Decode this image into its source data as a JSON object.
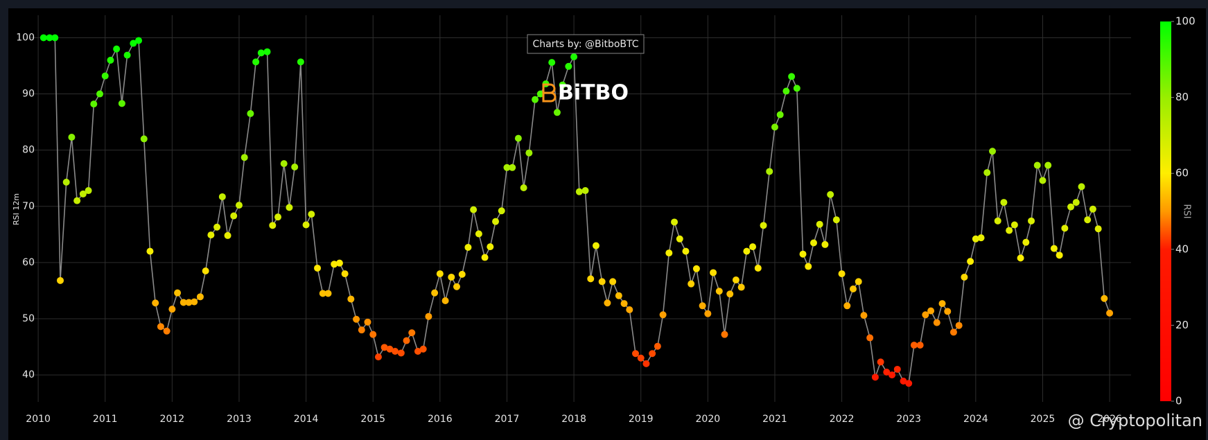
{
  "chart_data": {
    "type": "scatter-line",
    "y_axis_label": "RSI 12m",
    "annotation": "Charts by: @BitboBTC",
    "watermark": "BiTBO",
    "credit": "@ Cryptopolitan",
    "line_color": "#8a8a8a",
    "grid": true,
    "xlim": [
      2009.885,
      2026.32
    ],
    "xticks": [
      2010,
      2011,
      2012,
      2013,
      2014,
      2015,
      2016,
      2017,
      2018,
      2019,
      2020,
      2021,
      2022,
      2023,
      2024,
      2025,
      2026
    ],
    "ylim": [
      35.2,
      104
    ],
    "yticks": [
      40,
      50,
      60,
      70,
      80,
      90,
      100
    ],
    "colorbar": {
      "title": "RSI",
      "lim": [
        0,
        100
      ],
      "ticks": [
        0,
        20,
        40,
        60,
        80,
        100
      ],
      "colorscale": [
        [
          0,
          "#ff0000"
        ],
        [
          40,
          "#ff1a00"
        ],
        [
          50,
          "#ff9900"
        ],
        [
          60,
          "#ffee00"
        ],
        [
          80,
          "#99ee00"
        ],
        [
          100,
          "#00ff00"
        ]
      ]
    },
    "x": [
      2010.08,
      2010.17,
      2010.25,
      2010.33,
      2010.42,
      2010.5,
      2010.58,
      2010.67,
      2010.75,
      2010.83,
      2010.92,
      2011,
      2011.08,
      2011.17,
      2011.25,
      2011.33,
      2011.42,
      2011.5,
      2011.58,
      2011.67,
      2011.75,
      2011.83,
      2011.92,
      2012,
      2012.08,
      2012.17,
      2012.25,
      2012.33,
      2012.42,
      2012.5,
      2012.58,
      2012.67,
      2012.75,
      2012.83,
      2012.92,
      2013,
      2013.08,
      2013.17,
      2013.25,
      2013.33,
      2013.42,
      2013.5,
      2013.58,
      2013.67,
      2013.75,
      2013.83,
      2013.92,
      2014,
      2014.08,
      2014.17,
      2014.25,
      2014.33,
      2014.42,
      2014.5,
      2014.58,
      2014.67,
      2014.75,
      2014.83,
      2014.92,
      2015,
      2015.08,
      2015.17,
      2015.25,
      2015.33,
      2015.42,
      2015.5,
      2015.58,
      2015.67,
      2015.75,
      2015.83,
      2015.92,
      2016,
      2016.08,
      2016.17,
      2016.25,
      2016.33,
      2016.42,
      2016.5,
      2016.58,
      2016.67,
      2016.75,
      2016.83,
      2016.92,
      2017,
      2017.08,
      2017.17,
      2017.25,
      2017.33,
      2017.42,
      2017.5,
      2017.58,
      2017.67,
      2017.75,
      2017.83,
      2017.92,
      2018,
      2018.08,
      2018.17,
      2018.25,
      2018.33,
      2018.42,
      2018.5,
      2018.58,
      2018.67,
      2018.75,
      2018.83,
      2018.92,
      2019,
      2019.08,
      2019.17,
      2019.25,
      2019.33,
      2019.42,
      2019.5,
      2019.58,
      2019.67,
      2019.75,
      2019.83,
      2019.92,
      2020,
      2020.08,
      2020.17,
      2020.25,
      2020.33,
      2020.42,
      2020.5,
      2020.58,
      2020.67,
      2020.75,
      2020.83,
      2020.92,
      2021,
      2021.08,
      2021.17,
      2021.25,
      2021.33,
      2021.42,
      2021.5,
      2021.58,
      2021.67,
      2021.75,
      2021.83,
      2021.92,
      2022,
      2022.08,
      2022.17,
      2022.25,
      2022.33,
      2022.42,
      2022.5,
      2022.58,
      2022.67,
      2022.75,
      2022.83,
      2022.92,
      2023,
      2023.08,
      2023.17,
      2023.25,
      2023.33,
      2023.42,
      2023.5,
      2023.58,
      2023.67,
      2023.75,
      2023.83,
      2023.92,
      2024,
      2024.08,
      2024.17,
      2024.25,
      2024.33,
      2024.42,
      2024.5,
      2024.58,
      2024.67,
      2024.75,
      2024.83,
      2024.92,
      2025,
      2025.08,
      2025.17,
      2025.25,
      2025.33,
      2025.42,
      2025.5,
      2025.58,
      2025.67,
      2025.75,
      2025.83,
      2025.92,
      2026
    ],
    "values": [
      100,
      100,
      100,
      56.8,
      74.3,
      82.3,
      71,
      72.2,
      72.8,
      88.2,
      90,
      93.2,
      96,
      98,
      88.3,
      96.9,
      99,
      99.5,
      82,
      62,
      52.8,
      48.6,
      47.8,
      51.7,
      54.6,
      52.9,
      52.9,
      53,
      53.9,
      58.5,
      64.9,
      66.3,
      71.7,
      64.8,
      68.3,
      70.2,
      78.7,
      86.5,
      95.7,
      97.3,
      97.5,
      66.6,
      68.1,
      77.6,
      69.8,
      77,
      95.7,
      66.7,
      68.6,
      59,
      54.5,
      54.5,
      59.7,
      59.9,
      58,
      53.5,
      49.9,
      48,
      49.4,
      47.2,
      43.2,
      44.9,
      44.6,
      44.2,
      43.9,
      46.1,
      47.5,
      44.2,
      44.6,
      50.4,
      54.6,
      58,
      53.2,
      57.4,
      55.7,
      57.9,
      62.7,
      69.4,
      65.1,
      60.9,
      62.8,
      67.3,
      69.2,
      76.9,
      76.9,
      82.1,
      73.3,
      79.5,
      89,
      90,
      91.8,
      95.6,
      86.7,
      91.6,
      94.9,
      96.6,
      72.6,
      72.8,
      57.1,
      63,
      56.6,
      52.8,
      56.6,
      54.1,
      52.7,
      51.6,
      43.8,
      43,
      42,
      43.8,
      45.1,
      50.7,
      61.7,
      67.2,
      64.2,
      62,
      56.2,
      58.9,
      52.3,
      50.9,
      58.2,
      54.9,
      47.2,
      54.4,
      56.9,
      55.6,
      62,
      62.8,
      59,
      66.6,
      76.2,
      84.1,
      86.3,
      90.5,
      93.1,
      91,
      61.5,
      59.3,
      63.5,
      66.8,
      63.2,
      72.1,
      67.6,
      58,
      52.3,
      55.3,
      56.6,
      50.6,
      46.6,
      39.6,
      42.3,
      40.5,
      40,
      41,
      38.9,
      38.5,
      45.3,
      45.3,
      50.7,
      51.4,
      49.3,
      52.7,
      51.3,
      47.6,
      48.8,
      57.4,
      60.2,
      64.2,
      64.4,
      76,
      79.8,
      67.4,
      70.7,
      65.7,
      66.7,
      60.8,
      63.6,
      67.4,
      77.3,
      74.6,
      77.3,
      62.5,
      61.3,
      66.1,
      69.9,
      70.7,
      73.5,
      67.6,
      69.5,
      66,
      53.6,
      51
    ]
  }
}
